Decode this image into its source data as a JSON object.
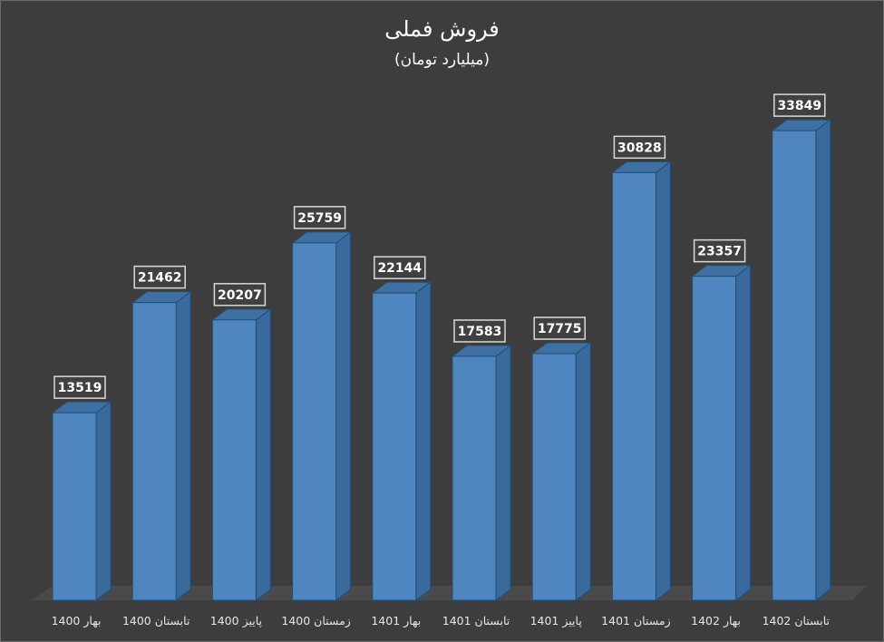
{
  "chart_data": {
    "type": "bar",
    "title": "فروش فملی",
    "subtitle": "(میلیارد تومان)",
    "categories": [
      "بهار 1400",
      "تابستان 1400",
      "پاییز 1400",
      "زمستان 1400",
      "بهار 1401",
      "تابستان 1401",
      "پاییز 1401",
      "زمستان 1401",
      "بهار 1402",
      "تابستان 1402"
    ],
    "values": [
      13519,
      21462,
      20207,
      25759,
      22144,
      17583,
      17775,
      30828,
      23357,
      33849
    ],
    "data_labels": [
      "13519",
      "21462",
      "20207",
      "25759",
      "22144",
      "17583",
      "17775",
      "30828",
      "23357",
      "33849"
    ],
    "ylim": [
      0,
      34000
    ],
    "grid": false,
    "legend": "none",
    "style": "3d-column",
    "colors": {
      "background": "#3d3d3d",
      "bar_front": "#4f86c0",
      "bar_side": "#3a6a9c",
      "bar_top": "#3f70a3",
      "bar_edge": "#1f4e79",
      "floor": "#4a4a4a",
      "text": "#ffffff",
      "axis_text": "#e6e6e6"
    }
  }
}
